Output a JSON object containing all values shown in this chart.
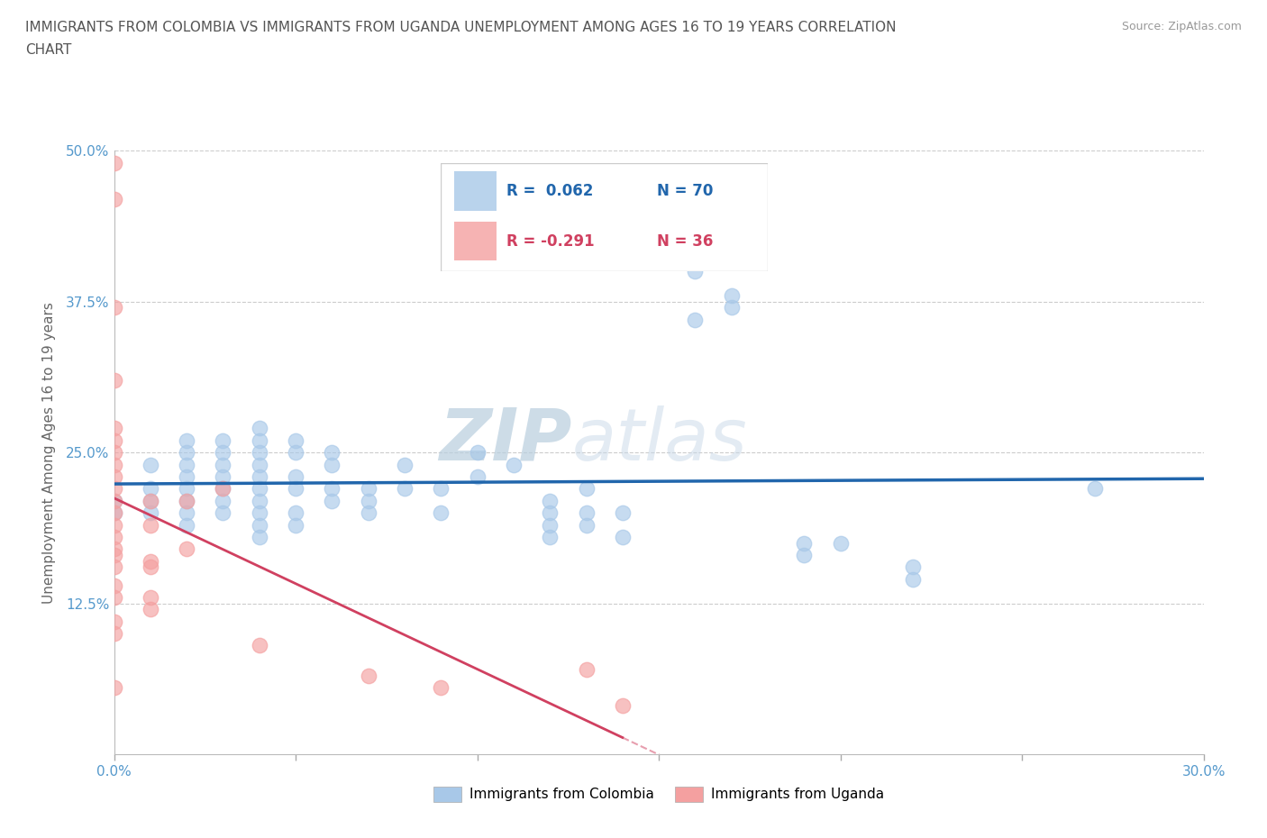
{
  "title_line1": "IMMIGRANTS FROM COLOMBIA VS IMMIGRANTS FROM UGANDA UNEMPLOYMENT AMONG AGES 16 TO 19 YEARS CORRELATION",
  "title_line2": "CHART",
  "source_text": "Source: ZipAtlas.com",
  "ylabel": "Unemployment Among Ages 16 to 19 years",
  "xlim": [
    0.0,
    0.3
  ],
  "ylim": [
    0.0,
    0.5
  ],
  "x_ticks": [
    0.0,
    0.05,
    0.1,
    0.15,
    0.2,
    0.25,
    0.3
  ],
  "x_tick_labels": [
    "0.0%",
    "",
    "",
    "",
    "",
    "",
    "30.0%"
  ],
  "y_ticks": [
    0.0,
    0.125,
    0.25,
    0.375,
    0.5
  ],
  "y_tick_labels": [
    "",
    "12.5%",
    "25.0%",
    "37.5%",
    "50.0%"
  ],
  "colombia_color": "#a8c8e8",
  "uganda_color": "#f4a0a0",
  "colombia_line_color": "#2166ac",
  "uganda_line_color": "#d04060",
  "legend_R_colombia": "R =  0.062",
  "legend_N_colombia": "N = 70",
  "legend_R_uganda": "R = -0.291",
  "legend_N_uganda": "N = 36",
  "watermark_ZIP": "ZIP",
  "watermark_atlas": "atlas",
  "colombia_scatter": [
    [
      0.0,
      0.21
    ],
    [
      0.0,
      0.2
    ],
    [
      0.01,
      0.24
    ],
    [
      0.01,
      0.22
    ],
    [
      0.01,
      0.21
    ],
    [
      0.01,
      0.2
    ],
    [
      0.02,
      0.26
    ],
    [
      0.02,
      0.25
    ],
    [
      0.02,
      0.24
    ],
    [
      0.02,
      0.23
    ],
    [
      0.02,
      0.22
    ],
    [
      0.02,
      0.21
    ],
    [
      0.02,
      0.2
    ],
    [
      0.02,
      0.19
    ],
    [
      0.03,
      0.26
    ],
    [
      0.03,
      0.25
    ],
    [
      0.03,
      0.24
    ],
    [
      0.03,
      0.23
    ],
    [
      0.03,
      0.22
    ],
    [
      0.03,
      0.21
    ],
    [
      0.03,
      0.2
    ],
    [
      0.04,
      0.27
    ],
    [
      0.04,
      0.26
    ],
    [
      0.04,
      0.25
    ],
    [
      0.04,
      0.24
    ],
    [
      0.04,
      0.23
    ],
    [
      0.04,
      0.22
    ],
    [
      0.04,
      0.21
    ],
    [
      0.04,
      0.2
    ],
    [
      0.04,
      0.19
    ],
    [
      0.04,
      0.18
    ],
    [
      0.05,
      0.26
    ],
    [
      0.05,
      0.25
    ],
    [
      0.05,
      0.23
    ],
    [
      0.05,
      0.22
    ],
    [
      0.05,
      0.2
    ],
    [
      0.05,
      0.19
    ],
    [
      0.06,
      0.25
    ],
    [
      0.06,
      0.24
    ],
    [
      0.06,
      0.22
    ],
    [
      0.06,
      0.21
    ],
    [
      0.07,
      0.22
    ],
    [
      0.07,
      0.21
    ],
    [
      0.07,
      0.2
    ],
    [
      0.08,
      0.24
    ],
    [
      0.08,
      0.22
    ],
    [
      0.09,
      0.22
    ],
    [
      0.09,
      0.2
    ],
    [
      0.1,
      0.25
    ],
    [
      0.1,
      0.23
    ],
    [
      0.11,
      0.24
    ],
    [
      0.12,
      0.21
    ],
    [
      0.12,
      0.2
    ],
    [
      0.12,
      0.19
    ],
    [
      0.12,
      0.18
    ],
    [
      0.13,
      0.22
    ],
    [
      0.13,
      0.2
    ],
    [
      0.13,
      0.19
    ],
    [
      0.14,
      0.2
    ],
    [
      0.14,
      0.18
    ],
    [
      0.16,
      0.4
    ],
    [
      0.16,
      0.36
    ],
    [
      0.17,
      0.38
    ],
    [
      0.17,
      0.37
    ],
    [
      0.19,
      0.175
    ],
    [
      0.19,
      0.165
    ],
    [
      0.2,
      0.175
    ],
    [
      0.22,
      0.155
    ],
    [
      0.22,
      0.145
    ],
    [
      0.27,
      0.22
    ]
  ],
  "uganda_scatter": [
    [
      0.0,
      0.49
    ],
    [
      0.0,
      0.46
    ],
    [
      0.0,
      0.37
    ],
    [
      0.0,
      0.31
    ],
    [
      0.0,
      0.27
    ],
    [
      0.0,
      0.26
    ],
    [
      0.0,
      0.25
    ],
    [
      0.0,
      0.24
    ],
    [
      0.0,
      0.23
    ],
    [
      0.0,
      0.22
    ],
    [
      0.0,
      0.21
    ],
    [
      0.0,
      0.2
    ],
    [
      0.0,
      0.19
    ],
    [
      0.0,
      0.18
    ],
    [
      0.0,
      0.17
    ],
    [
      0.0,
      0.165
    ],
    [
      0.0,
      0.155
    ],
    [
      0.0,
      0.14
    ],
    [
      0.0,
      0.13
    ],
    [
      0.0,
      0.11
    ],
    [
      0.0,
      0.1
    ],
    [
      0.0,
      0.055
    ],
    [
      0.01,
      0.21
    ],
    [
      0.01,
      0.19
    ],
    [
      0.01,
      0.16
    ],
    [
      0.01,
      0.155
    ],
    [
      0.01,
      0.13
    ],
    [
      0.01,
      0.12
    ],
    [
      0.02,
      0.21
    ],
    [
      0.02,
      0.17
    ],
    [
      0.03,
      0.22
    ],
    [
      0.04,
      0.09
    ],
    [
      0.07,
      0.065
    ],
    [
      0.09,
      0.055
    ],
    [
      0.13,
      0.07
    ],
    [
      0.14,
      0.04
    ]
  ]
}
